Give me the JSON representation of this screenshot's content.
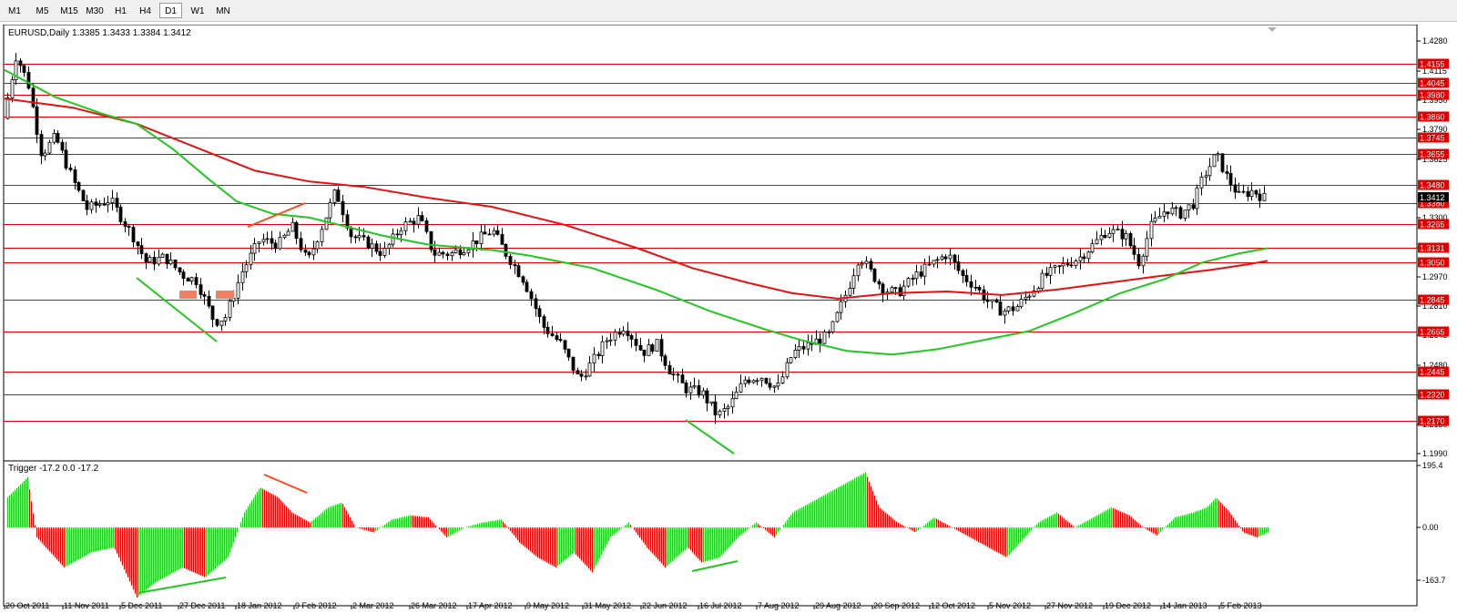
{
  "toolbar": {
    "timeframes": [
      "M1",
      "M5",
      "M15",
      "M30",
      "H1",
      "H4",
      "D1",
      "W1",
      "MN"
    ],
    "active": "D1"
  },
  "price_chart": {
    "header": "EURUSD,Daily  1.3385 1.3433 1.3384 1.3412",
    "right_axis_ticks": [
      "1.4280",
      "1.4115",
      "1.3950",
      "1.3790",
      "1.3625",
      "1.3300",
      "1.3135",
      "1.2970",
      "1.2810",
      "1.2645",
      "1.2480",
      "1.2315",
      "1.2150",
      "1.1990"
    ],
    "levels": [
      "1.4155",
      "1.4045",
      "1.3980",
      "1.3860",
      "1.3745",
      "1.3655",
      "1.3480",
      "1.3380",
      "1.3265",
      "1.3131",
      "1.3050",
      "1.2845",
      "1.2665",
      "1.2445",
      "1.2320",
      "1.2170"
    ],
    "current_price": "1.3412"
  },
  "indicator": {
    "header": "Trigger -17.2 0.0 -17.2",
    "ticks": [
      "195.4",
      "0.00",
      "-163.7"
    ]
  },
  "time_axis": [
    "20 Oct 2011",
    "11 Nov 2011",
    "5 Dec 2011",
    "27 Dec 2011",
    "18 Jan 2012",
    "9 Feb 2012",
    "2 Mar 2012",
    "26 Mar 2012",
    "17 Apr 2012",
    "9 May 2012",
    "31 May 2012",
    "22 Jun 2012",
    "16 Jul 2012",
    "7 Aug 2012",
    "29 Aug 2012",
    "20 Sep 2012",
    "12 Oct 2012",
    "5 Nov 2012",
    "27 Nov 2012",
    "19 Dec 2012",
    "14 Jan 2013",
    "5 Feb 2013"
  ],
  "colors": {
    "level_line": "#e00000",
    "level_label_bg": "#e00000",
    "ma_fast": "#22c822",
    "ma_slow": "#e81010",
    "histogram_up": "#22c822",
    "histogram_down": "#e00000",
    "candle": "#000000",
    "trendline_green": "#22c822",
    "trendline_orange": "#ff4a1a",
    "marker": "#f08060"
  }
}
